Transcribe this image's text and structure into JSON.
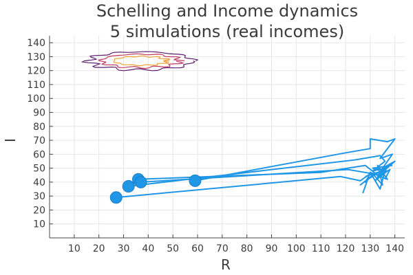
{
  "chart_data": {
    "type": "line",
    "title": "Schelling and Income dynamics",
    "subtitle": "5 simulations (real incomes)",
    "xlabel": "R",
    "ylabel": "I",
    "xlim": [
      0,
      144
    ],
    "ylim": [
      0,
      145
    ],
    "xticks": [
      10,
      20,
      30,
      40,
      50,
      60,
      70,
      80,
      90,
      100,
      110,
      120,
      130,
      140
    ],
    "yticks": [
      10,
      20,
      30,
      40,
      50,
      60,
      70,
      80,
      90,
      100,
      110,
      120,
      130,
      140
    ],
    "grid": true,
    "legend": "none",
    "colors": {
      "trajectory": "#1f96e6",
      "contour_outer": "#5b1a6e",
      "contour_mid": "#c0365a",
      "contour_inner": "#f0a033"
    },
    "series": [
      {
        "values_xy": [
          [
            27,
            29
          ],
          [
            118,
            44
          ],
          [
            126,
            41
          ],
          [
            130,
            46
          ],
          [
            128,
            40
          ],
          [
            131,
            45
          ],
          [
            126,
            38
          ],
          [
            129,
            42
          ],
          [
            127,
            32
          ]
        ],
        "start": [
          27,
          29
        ]
      },
      {
        "values_xy": [
          [
            32,
            37
          ],
          [
            124,
            56
          ],
          [
            134,
            59
          ],
          [
            136,
            55
          ],
          [
            131,
            48
          ],
          [
            136,
            50
          ],
          [
            130,
            43
          ],
          [
            133,
            47
          ],
          [
            128,
            44
          ]
        ],
        "start": [
          32,
          37
        ]
      },
      {
        "values_xy": [
          [
            36,
            42
          ],
          [
            110,
            47
          ],
          [
            128,
            52
          ],
          [
            133,
            45
          ],
          [
            138,
            53
          ],
          [
            132,
            41
          ],
          [
            137,
            48
          ],
          [
            131,
            50
          ],
          [
            139,
            52
          ]
        ],
        "start": [
          36,
          42
        ]
      },
      {
        "values_xy": [
          [
            37,
            40
          ],
          [
            121,
            49
          ],
          [
            131,
            46
          ],
          [
            135,
            38
          ],
          [
            133,
            52
          ],
          [
            137,
            42
          ],
          [
            130,
            47
          ],
          [
            134,
            35
          ],
          [
            136,
            48
          ]
        ],
        "start": [
          37,
          40
        ]
      },
      {
        "values_xy": [
          [
            59,
            41
          ],
          [
            120,
            61
          ],
          [
            130,
            64
          ],
          [
            130,
            71
          ],
          [
            137,
            69
          ],
          [
            140,
            71
          ],
          [
            134,
            57
          ],
          [
            139,
            60
          ],
          [
            135,
            50
          ],
          [
            140,
            55
          ],
          [
            133,
            44
          ],
          [
            138,
            49
          ],
          [
            136,
            42
          ]
        ],
        "start": [
          59,
          41
        ]
      }
    ],
    "contour": {
      "center": [
        37,
        127
      ],
      "levels": [
        {
          "name": "outer",
          "rx": 21,
          "ry": 6.5
        },
        {
          "name": "mid",
          "rx": 16,
          "ry": 4.8
        },
        {
          "name": "inner",
          "rx": 11,
          "ry": 3.2
        }
      ]
    }
  }
}
